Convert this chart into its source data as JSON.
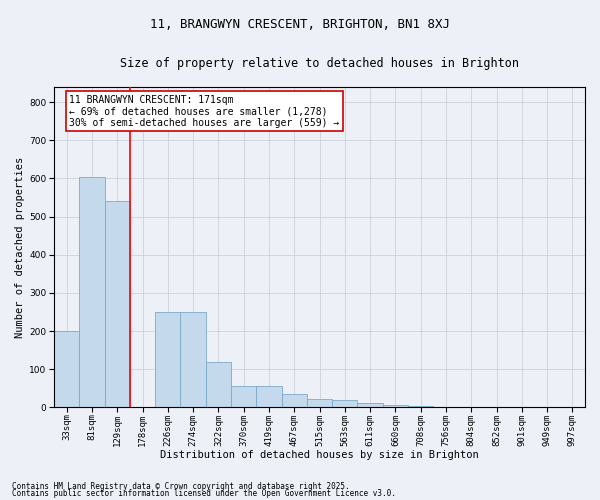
{
  "title1": "11, BRANGWYN CRESCENT, BRIGHTON, BN1 8XJ",
  "title2": "Size of property relative to detached houses in Brighton",
  "xlabel": "Distribution of detached houses by size in Brighton",
  "ylabel": "Number of detached properties",
  "bar_labels": [
    "33sqm",
    "81sqm",
    "129sqm",
    "178sqm",
    "226sqm",
    "274sqm",
    "322sqm",
    "370sqm",
    "419sqm",
    "467sqm",
    "515sqm",
    "563sqm",
    "611sqm",
    "660sqm",
    "708sqm",
    "756sqm",
    "804sqm",
    "852sqm",
    "901sqm",
    "949sqm",
    "997sqm"
  ],
  "bar_values": [
    200,
    605,
    540,
    0,
    250,
    250,
    120,
    55,
    55,
    35,
    22,
    18,
    12,
    5,
    3,
    2,
    1,
    1,
    0,
    0,
    0
  ],
  "bar_color": "#c5d9ec",
  "bar_edgecolor": "#7aaac8",
  "red_line_index": 3,
  "red_line_color": "#ff0000",
  "annotation_text": "11 BRANGWYN CRESCENT: 171sqm\n← 69% of detached houses are smaller (1,278)\n30% of semi-detached houses are larger (559) →",
  "annotation_box_facecolor": "#ffffff",
  "annotation_border_color": "#cc0000",
  "ylim": [
    0,
    840
  ],
  "yticks": [
    0,
    100,
    200,
    300,
    400,
    500,
    600,
    700,
    800
  ],
  "background_color": "#edf1f7",
  "grid_color": "#c5cdd8",
  "footer1": "Contains HM Land Registry data © Crown copyright and database right 2025.",
  "footer2": "Contains public sector information licensed under the Open Government Licence v3.0.",
  "title1_fontsize": 9,
  "title2_fontsize": 8.5,
  "axis_label_fontsize": 7.5,
  "tick_fontsize": 6.5,
  "annotation_fontsize": 7,
  "footer_fontsize": 5.5
}
